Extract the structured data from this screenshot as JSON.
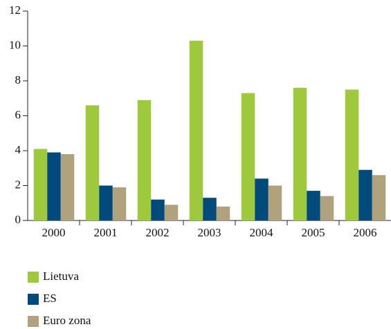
{
  "chart_data": {
    "type": "bar",
    "categories": [
      "2000",
      "2001",
      "2002",
      "2003",
      "2004",
      "2005",
      "2006"
    ],
    "series": [
      {
        "name": "Lietuva",
        "color": "#9ec93c",
        "values": [
          4.1,
          6.6,
          6.9,
          10.3,
          7.3,
          7.6,
          7.5
        ]
      },
      {
        "name": "ES",
        "color": "#004a7c",
        "values": [
          3.9,
          2.0,
          1.2,
          1.3,
          2.4,
          1.7,
          2.9
        ]
      },
      {
        "name": "Euro zona",
        "color": "#b0a27c",
        "values": [
          3.8,
          1.9,
          0.9,
          0.8,
          2.0,
          1.4,
          2.6
        ]
      }
    ],
    "ylim": [
      0,
      12
    ],
    "yticks": [
      0,
      2,
      4,
      6,
      8,
      10,
      12
    ],
    "grid": false,
    "legend": "bottom-left"
  }
}
